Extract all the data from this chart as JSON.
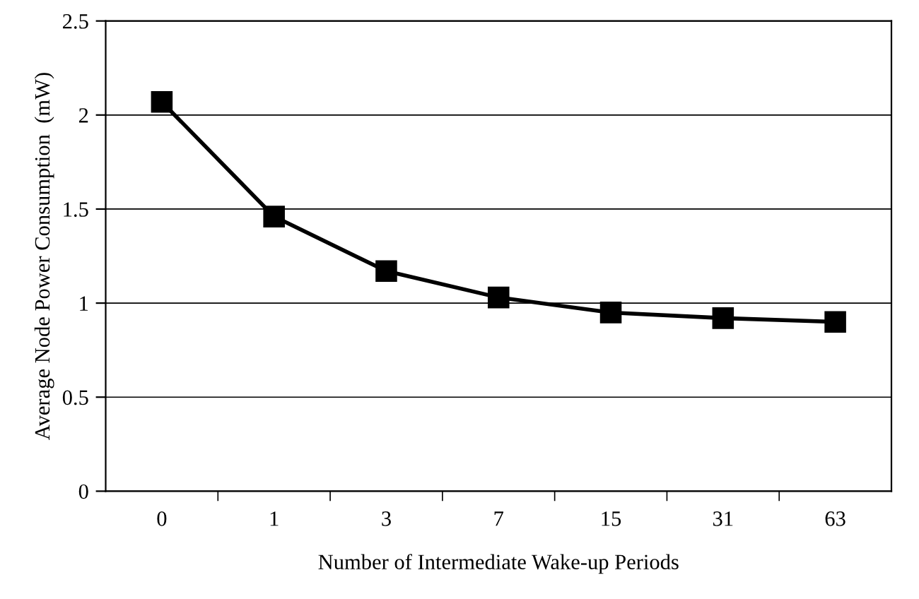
{
  "chart_data": {
    "type": "line",
    "xlabel": "Number of Intermediate Wake-up Periods",
    "ylabel": "Average Node Power Consumption  (mW)",
    "categories": [
      "0",
      "1",
      "3",
      "7",
      "15",
      "31",
      "63"
    ],
    "series": [
      {
        "color": "#000000",
        "values": [
          2.07,
          1.46,
          1.17,
          1.03,
          0.95,
          0.92,
          0.9
        ]
      }
    ],
    "ylim": [
      0,
      2.5
    ],
    "yticks": [
      0,
      0.5,
      1,
      1.5,
      2,
      2.5
    ],
    "grid": "y",
    "marker": "square",
    "line_style": "solid",
    "legend": false
  }
}
